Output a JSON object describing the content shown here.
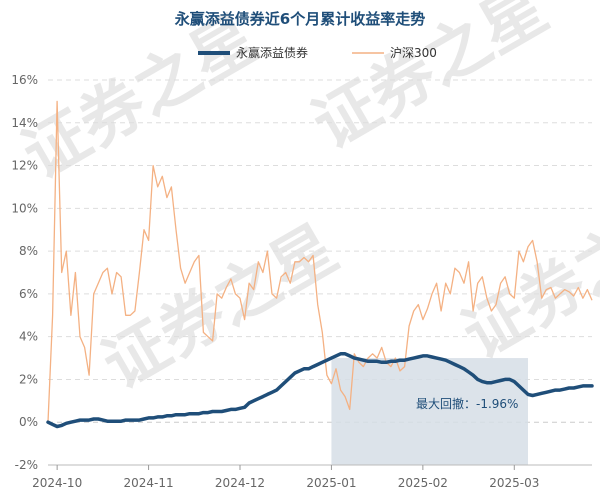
{
  "chart_data": {
    "type": "line",
    "title": "永赢添益债券近6个月累计收益率走势",
    "watermark": "证券之星",
    "ylim": [
      -2,
      16
    ],
    "y_ticks": [
      "-2%",
      "0%",
      "2%",
      "4%",
      "6%",
      "8%",
      "10%",
      "12%",
      "14%",
      "16%"
    ],
    "y_tick_values": [
      -2,
      0,
      2,
      4,
      6,
      8,
      10,
      12,
      14,
      16
    ],
    "x_ticks": [
      "2024-10",
      "2024-11",
      "2024-12",
      "2025-01",
      "2025-02",
      "2025-03"
    ],
    "x_tick_index": [
      2,
      22,
      42,
      62,
      82,
      102
    ],
    "n_points": 120,
    "grid": "horizontal dashed",
    "legend_position": "top-center",
    "colors": {
      "fund": "#1f4e79",
      "index": "#f4b183",
      "drawdown": "#d6dee6"
    },
    "series": [
      {
        "name": "永赢添益债券",
        "values": [
          0,
          -0.1,
          -0.2,
          -0.15,
          -0.05,
          0,
          0.05,
          0.1,
          0.1,
          0.1,
          0.15,
          0.15,
          0.1,
          0.05,
          0.05,
          0.05,
          0.05,
          0.1,
          0.1,
          0.1,
          0.1,
          0.15,
          0.2,
          0.2,
          0.25,
          0.25,
          0.3,
          0.3,
          0.35,
          0.35,
          0.35,
          0.4,
          0.4,
          0.4,
          0.45,
          0.45,
          0.5,
          0.5,
          0.5,
          0.55,
          0.6,
          0.6,
          0.65,
          0.7,
          0.9,
          1.0,
          1.1,
          1.2,
          1.3,
          1.4,
          1.5,
          1.7,
          1.9,
          2.1,
          2.3,
          2.4,
          2.5,
          2.5,
          2.6,
          2.7,
          2.8,
          2.9,
          3.0,
          3.1,
          3.2,
          3.2,
          3.1,
          3.0,
          2.95,
          2.9,
          2.85,
          2.85,
          2.85,
          2.8,
          2.8,
          2.85,
          2.85,
          2.9,
          2.9,
          2.95,
          3.0,
          3.05,
          3.1,
          3.1,
          3.05,
          3.0,
          2.95,
          2.9,
          2.8,
          2.7,
          2.6,
          2.5,
          2.35,
          2.2,
          2.0,
          1.9,
          1.85,
          1.85,
          1.9,
          1.95,
          2.0,
          2.0,
          1.9,
          1.7,
          1.5,
          1.3,
          1.25,
          1.3,
          1.35,
          1.4,
          1.45,
          1.5,
          1.5,
          1.55,
          1.6,
          1.6,
          1.65,
          1.7,
          1.7,
          1.7
        ]
      },
      {
        "name": "沪深300",
        "values": [
          0,
          5,
          15,
          7,
          8,
          5,
          7,
          4,
          3.5,
          2.2,
          6,
          6.5,
          7,
          7.2,
          6,
          7,
          6.8,
          5,
          5,
          5.2,
          7,
          9,
          8.5,
          12,
          11,
          11.5,
          10.5,
          11,
          9,
          7.2,
          6.5,
          7,
          7.5,
          7.8,
          4.2,
          4,
          3.8,
          6,
          5.8,
          6.3,
          6.7,
          6,
          5.8,
          4.8,
          6.5,
          6.2,
          7.5,
          7,
          8,
          6,
          5.8,
          6.8,
          7,
          6.5,
          7.5,
          7.5,
          7.7,
          7.5,
          7.8,
          5.5,
          4.2,
          2.2,
          1.8,
          2.5,
          1.5,
          1.2,
          0.6,
          3.2,
          2.8,
          2.6,
          3.0,
          3.2,
          3.0,
          3.5,
          2.8,
          2.6,
          3.0,
          2.4,
          2.6,
          4.5,
          5.2,
          5.5,
          4.8,
          5.3,
          6,
          6.5,
          5.2,
          6.5,
          6,
          7.2,
          7,
          6.5,
          7.5,
          5.2,
          6.5,
          6.8,
          5.8,
          5.2,
          5.5,
          6.5,
          6.8,
          6,
          5.8,
          8,
          7.5,
          8.2,
          8.5,
          7.5,
          5.8,
          6.2,
          6.3,
          5.8,
          6,
          6.2,
          6.1,
          5.9,
          6.3,
          5.8,
          6.2,
          5.7
        ]
      }
    ],
    "annotation": "最大回撤：-1.96%",
    "drawdown_range_index": [
      62,
      105
    ]
  }
}
